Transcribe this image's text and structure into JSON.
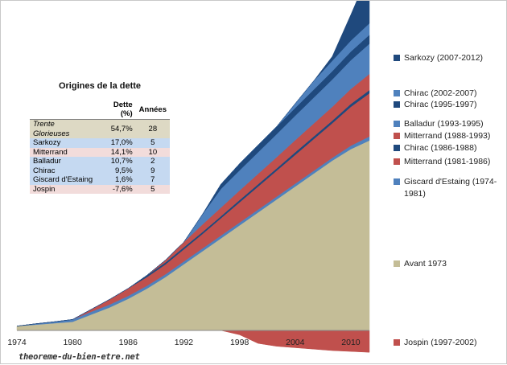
{
  "chart_data": {
    "type": "area",
    "x_tick_labels": [
      "1974",
      "1980",
      "1986",
      "1992",
      "1998",
      "2004",
      "2010"
    ],
    "xlim": [
      1974,
      2012
    ],
    "ylim": [
      -7.6,
      100
    ],
    "years": [
      1974,
      1976,
      1978,
      1980,
      1982,
      1984,
      1986,
      1988,
      1990,
      1992,
      1994,
      1996,
      1998,
      2000,
      2002,
      2004,
      2006,
      2008,
      2010,
      2012
    ],
    "series": [
      {
        "name": "Avant 1973",
        "color": "#c4bd97",
        "values": [
          1.5,
          2.0,
          2.5,
          3.0,
          5.5,
          8.0,
          11.0,
          14.5,
          18.5,
          23.0,
          27.5,
          32.0,
          36.5,
          41.0,
          45.5,
          50.0,
          54.5,
          59.0,
          63.0,
          66.0
        ]
      },
      {
        "name": "Giscard d'Estaing (1974-1981)",
        "color": "#4f81bd",
        "values": [
          0.0,
          0.3,
          0.5,
          0.8,
          1.0,
          1.0,
          1.0,
          1.0,
          1.0,
          1.0,
          1.0,
          1.0,
          1.0,
          1.0,
          1.0,
          1.0,
          1.0,
          1.0,
          1.2,
          1.4
        ]
      },
      {
        "name": "Mitterrand (1981-1986)",
        "color": "#c0504d",
        "values": [
          0.0,
          0.0,
          0.0,
          0.0,
          0.8,
          1.8,
          2.6,
          3.0,
          3.4,
          4.2,
          5.0,
          6.0,
          7.0,
          8.0,
          9.0,
          10.0,
          11.0,
          12.0,
          13.5,
          15.0
        ]
      },
      {
        "name": "Chirac (1986-1988)",
        "color": "#1f497d",
        "values": [
          0.0,
          0.0,
          0.0,
          0.0,
          0.0,
          0.0,
          0.0,
          0.6,
          0.7,
          0.7,
          0.7,
          0.7,
          0.8,
          0.8,
          0.8,
          0.9,
          0.9,
          0.9,
          1.0,
          1.1
        ]
      },
      {
        "name": "Mitterrand (1988-1993)",
        "color": "#c0504d",
        "values": [
          0.0,
          0.0,
          0.0,
          0.0,
          0.0,
          0.0,
          0.0,
          0.0,
          0.8,
          1.8,
          2.6,
          3.0,
          3.3,
          3.6,
          3.9,
          4.2,
          4.5,
          4.8,
          5.2,
          5.6
        ]
      },
      {
        "name": "Balladur (1993-1995)",
        "color": "#4f81bd",
        "values": [
          0.0,
          0.0,
          0.0,
          0.0,
          0.0,
          0.0,
          0.0,
          0.0,
          0.0,
          0.0,
          3.5,
          6.5,
          7.0,
          7.5,
          8.0,
          8.5,
          9.0,
          9.5,
          10.0,
          10.5
        ]
      },
      {
        "name": "Chirac (1995-1997)",
        "color": "#1f497d",
        "values": [
          0.0,
          0.0,
          0.0,
          0.0,
          0.0,
          0.0,
          0.0,
          0.0,
          0.0,
          0.0,
          0.0,
          1.6,
          2.3,
          2.5,
          2.6,
          2.7,
          2.8,
          2.9,
          3.0,
          3.1
        ]
      },
      {
        "name": "Chirac (2002-2007)",
        "color": "#4f81bd",
        "values": [
          0.0,
          0.0,
          0.0,
          0.0,
          0.0,
          0.0,
          0.0,
          0.0,
          0.0,
          0.0,
          0.0,
          0.0,
          0.0,
          0.0,
          0.0,
          1.5,
          3.0,
          3.6,
          3.8,
          4.0
        ]
      },
      {
        "name": "Sarkozy (2007-2012)",
        "color": "#1f497d",
        "values": [
          0.0,
          0.0,
          0.0,
          0.0,
          0.0,
          0.0,
          0.0,
          0.0,
          0.0,
          0.0,
          0.0,
          0.0,
          0.0,
          0.0,
          0.0,
          0.0,
          0.0,
          1.5,
          9.0,
          18.0
        ]
      },
      {
        "name": "Jospin (1997-2002)",
        "color": "#c0504d",
        "values": [
          0.0,
          0.0,
          0.0,
          0.0,
          0.0,
          0.0,
          0.0,
          0.0,
          0.0,
          0.0,
          0.0,
          0.0,
          -1.5,
          -4.5,
          -5.5,
          -6.0,
          -6.5,
          -7.0,
          -7.3,
          -7.6
        ]
      }
    ],
    "legend": [
      {
        "label": "Sarkozy (2007-2012)",
        "color": "#1f497d"
      },
      {
        "label": "Chirac (2002-2007)",
        "color": "#4f81bd"
      },
      {
        "label": "Chirac (1995-1997)",
        "color": "#1f497d"
      },
      {
        "label": "Balladur (1993-1995)",
        "color": "#4f81bd"
      },
      {
        "label": "Mitterrand (1988-1993)",
        "color": "#c0504d"
      },
      {
        "label": "Chirac (1986-1988)",
        "color": "#1f497d"
      },
      {
        "label": "Mitterrand (1981-1986)",
        "color": "#c0504d"
      },
      {
        "label": "Giscard d'Estaing (1974-1981)",
        "color": "#4f81bd"
      },
      {
        "label": "Avant 1973",
        "color": "#c4bd97"
      },
      {
        "label": "Jospin (1997-2002)",
        "color": "#c0504d"
      }
    ],
    "legend_placement": "right",
    "grid": false
  },
  "table": {
    "title": "Origines de la dette",
    "headers": [
      "",
      "Dette (%)",
      "Années"
    ],
    "rows": [
      {
        "name": "Trente Glorieuses",
        "dette": "54,7%",
        "annees": "28",
        "style": "r-beige"
      },
      {
        "name": "Sarkozy",
        "dette": "17,0%",
        "annees": "5",
        "style": "r-blue"
      },
      {
        "name": "Mitterrand",
        "dette": "14,1%",
        "annees": "10",
        "style": "r-red"
      },
      {
        "name": "Balladur",
        "dette": "10,7%",
        "annees": "2",
        "style": "r-blue"
      },
      {
        "name": "Chirac",
        "dette": "9,5%",
        "annees": "9",
        "style": "r-blue"
      },
      {
        "name": "Giscard d'Estaing",
        "dette": "1,6%",
        "annees": "7",
        "style": "r-blue"
      },
      {
        "name": "Jospin",
        "dette": "-7,6%",
        "annees": "5",
        "style": "r-red"
      }
    ]
  },
  "watermark": "theoreme-du-bien-etre.net"
}
